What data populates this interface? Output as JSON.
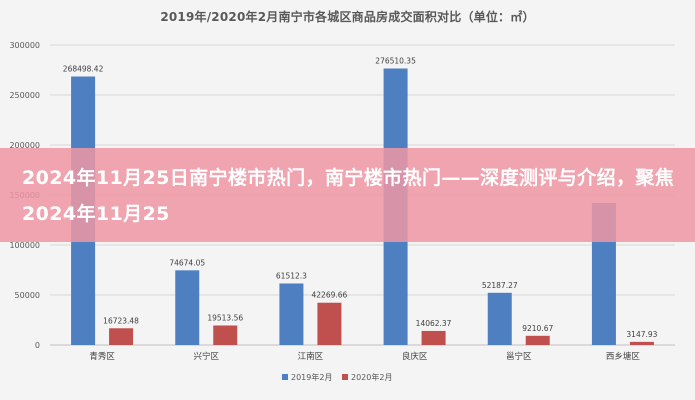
{
  "chart_data": {
    "type": "bar",
    "title": "2019年/2020年2月南宁市各城区商品房成交面积对比（单位：㎡）",
    "categories": [
      "青秀区",
      "兴宁区",
      "江南区",
      "良庆区",
      "邕宁区",
      "西乡塘区"
    ],
    "series": [
      {
        "name": "2019年2月",
        "color": "#4e7fc0",
        "values": [
          268498.42,
          74674.05,
          61512.3,
          276510.35,
          52187.27,
          142000
        ],
        "labels": [
          "268498.42",
          "74674.05",
          "61512.3",
          "276510.35",
          "52187.27",
          ""
        ]
      },
      {
        "name": "2020年2月",
        "color": "#c0504d",
        "values": [
          16723.48,
          19513.56,
          42269.66,
          14062.37,
          9210.67,
          3147.93
        ],
        "labels": [
          "16723.48",
          "19513.56",
          "42269.66",
          "14062.37",
          "9210.67",
          "3147.93"
        ]
      }
    ],
    "ylim": [
      0,
      300000
    ],
    "yticks": [
      0,
      50000,
      100000,
      150000,
      200000,
      250000,
      300000
    ],
    "ytick_labels": [
      "0",
      "50000",
      "100000",
      "150000",
      "200000",
      "250000",
      "300000"
    ],
    "grid": true,
    "legend_position": "bottom"
  },
  "overlay": {
    "text": "2024年11月25日南宁楼市热门，南宁楼市热门——深度测评与介绍，聚焦2024年11月25"
  }
}
